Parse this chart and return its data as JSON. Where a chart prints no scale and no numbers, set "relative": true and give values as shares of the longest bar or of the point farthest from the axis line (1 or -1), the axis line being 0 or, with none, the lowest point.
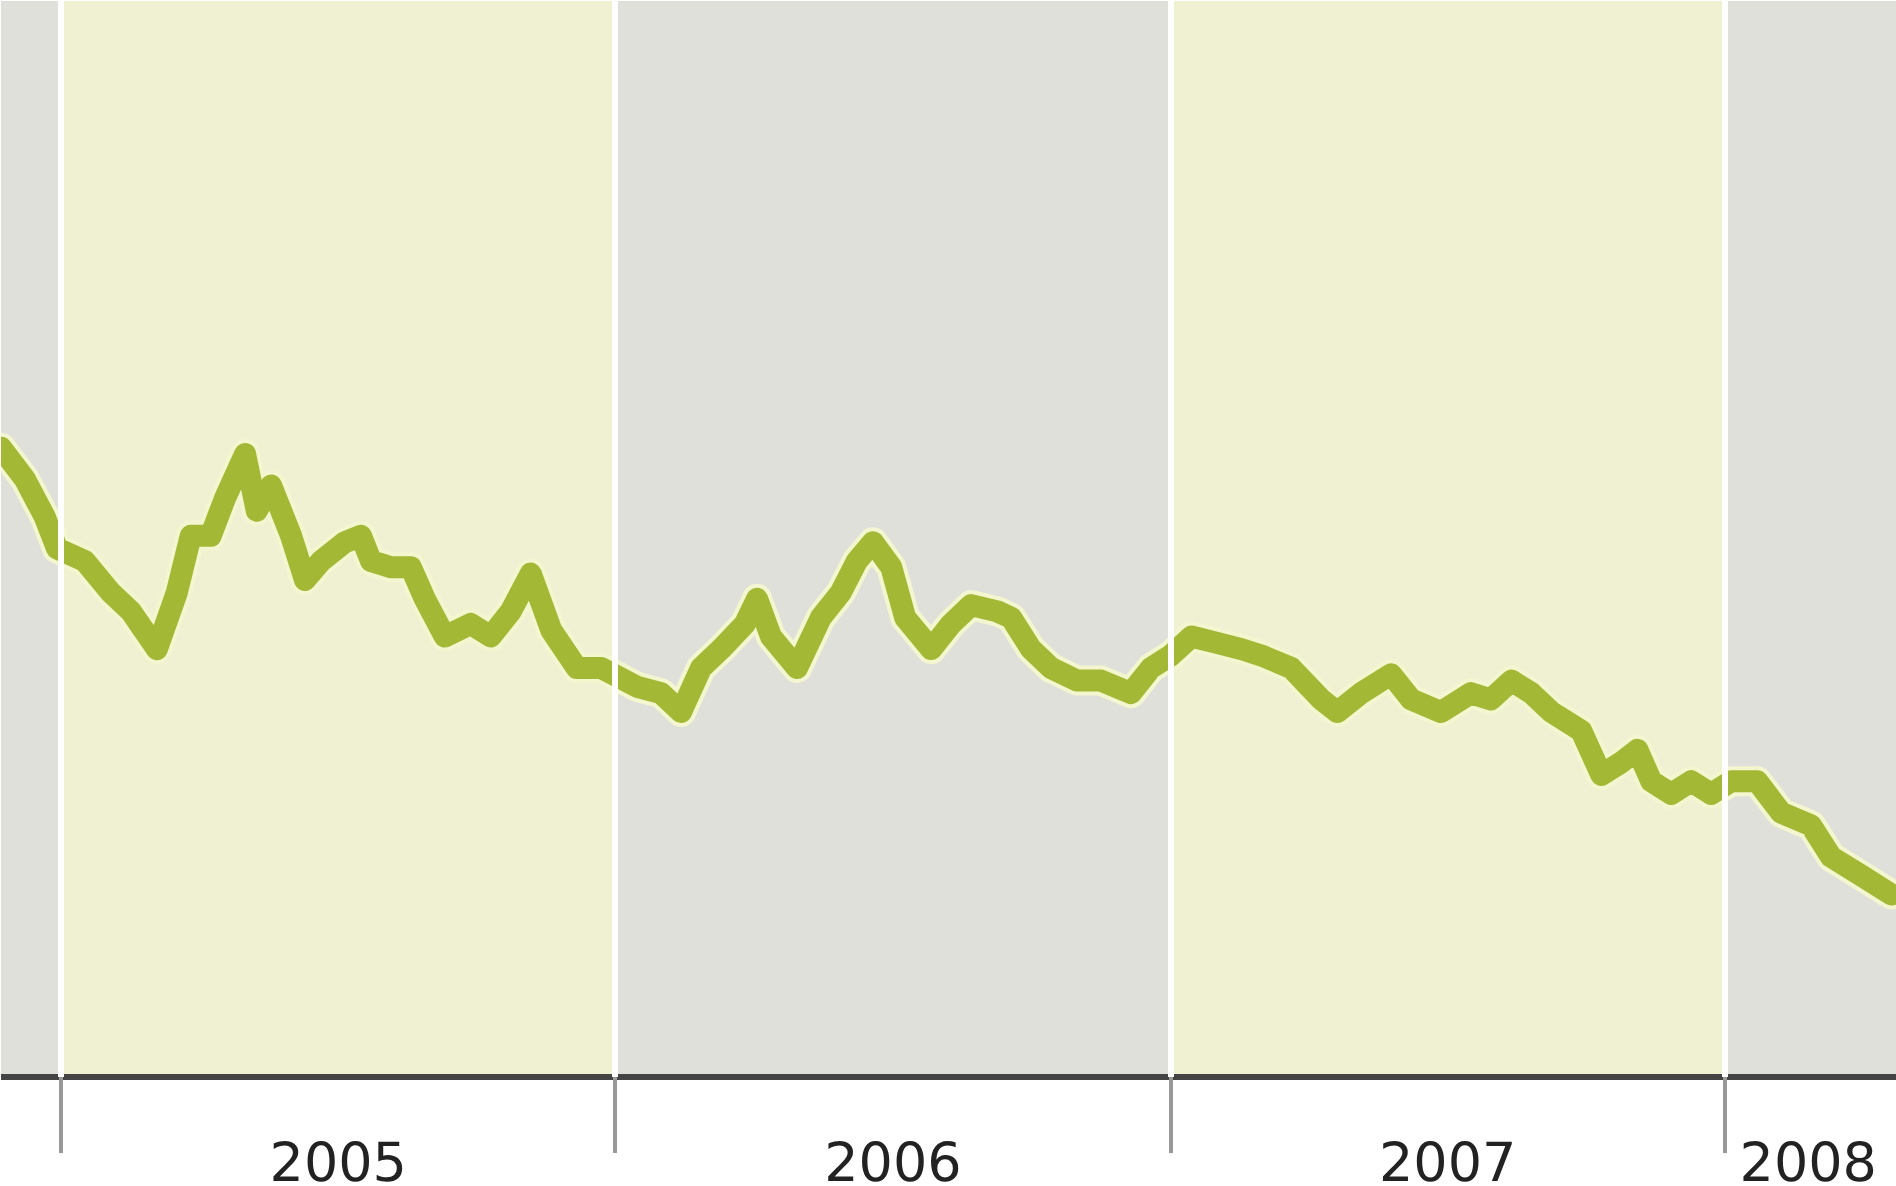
{
  "chart_data": {
    "type": "line",
    "relative": true,
    "x": [
      2004.892,
      2004.935,
      2004.971,
      2004.993,
      2005.043,
      2005.09,
      2005.126,
      2005.173,
      2005.209,
      2005.234,
      2005.27,
      2005.296,
      2005.332,
      2005.353,
      2005.379,
      2005.415,
      2005.44,
      2005.469,
      2005.512,
      2005.541,
      2005.559,
      2005.595,
      2005.631,
      2005.656,
      2005.692,
      2005.739,
      2005.775,
      2005.811,
      2005.847,
      2005.884,
      2005.93,
      2005.974,
      2006.039,
      2006.082,
      2006.118,
      2006.154,
      2006.19,
      2006.233,
      2006.255,
      2006.28,
      2006.327,
      2006.37,
      2006.406,
      2006.435,
      2006.464,
      2006.497,
      2006.522,
      2006.569,
      2006.605,
      2006.641,
      2006.688,
      2006.713,
      2006.749,
      2006.785,
      2006.832,
      2006.875,
      2006.929,
      2006.965,
      2007.001,
      2007.038,
      2007.084,
      2007.128,
      2007.164,
      2007.218,
      2007.272,
      2007.301,
      2007.344,
      2007.398,
      2007.434,
      2007.488,
      2007.542,
      2007.578,
      2007.615,
      2007.651,
      2007.687,
      2007.741,
      2007.777,
      2007.813,
      2007.842,
      2007.867,
      2007.903,
      2007.939,
      2007.975,
      2008.011,
      2008.058,
      2008.101,
      2008.155,
      2008.191,
      2008.246,
      2008.3
    ],
    "series": [
      {
        "color": "#a3b935",
        "values": [
          1.0,
          0.95,
          0.89,
          0.84,
          0.82,
          0.77,
          0.74,
          0.68,
          0.77,
          0.86,
          0.86,
          0.92,
          0.99,
          0.9,
          0.94,
          0.86,
          0.79,
          0.82,
          0.85,
          0.86,
          0.82,
          0.81,
          0.81,
          0.76,
          0.7,
          0.72,
          0.7,
          0.74,
          0.8,
          0.71,
          0.65,
          0.65,
          0.62,
          0.61,
          0.58,
          0.65,
          0.68,
          0.72,
          0.76,
          0.7,
          0.65,
          0.73,
          0.77,
          0.82,
          0.85,
          0.81,
          0.73,
          0.68,
          0.72,
          0.75,
          0.74,
          0.73,
          0.68,
          0.65,
          0.63,
          0.63,
          0.61,
          0.65,
          0.67,
          0.7,
          0.69,
          0.68,
          0.67,
          0.65,
          0.6,
          0.58,
          0.61,
          0.64,
          0.6,
          0.58,
          0.61,
          0.6,
          0.63,
          0.61,
          0.58,
          0.55,
          0.48,
          0.5,
          0.52,
          0.47,
          0.45,
          0.47,
          0.45,
          0.47,
          0.47,
          0.42,
          0.4,
          0.35,
          0.32,
          0.29
        ]
      }
    ],
    "xlim": [
      2004.892,
      2008.31
    ],
    "grid": "x",
    "xticks": [
      {
        "value": 2005,
        "label": null
      },
      {
        "value": 2005.5,
        "label": "2005"
      },
      {
        "value": 2006,
        "label": null
      },
      {
        "value": 2006.5,
        "label": "2006"
      },
      {
        "value": 2007,
        "label": null
      },
      {
        "value": 2007.5,
        "label": "2007"
      },
      {
        "value": 2008,
        "label": null
      },
      {
        "value": 2008.15,
        "label": "2008"
      }
    ],
    "bands": [
      {
        "axis": "x",
        "from": 2004.892,
        "to": 2005,
        "color": "#dfe0da"
      },
      {
        "axis": "x",
        "from": 2005,
        "to": 2006,
        "color": "#f0f0d3"
      },
      {
        "axis": "x",
        "from": 2006,
        "to": 2007,
        "color": "#dfe0da"
      },
      {
        "axis": "x",
        "from": 2007,
        "to": 2008,
        "color": "#f0f0d3"
      },
      {
        "axis": "x",
        "from": 2008,
        "to": 2008.31,
        "color": "#dfe0da"
      }
    ]
  }
}
